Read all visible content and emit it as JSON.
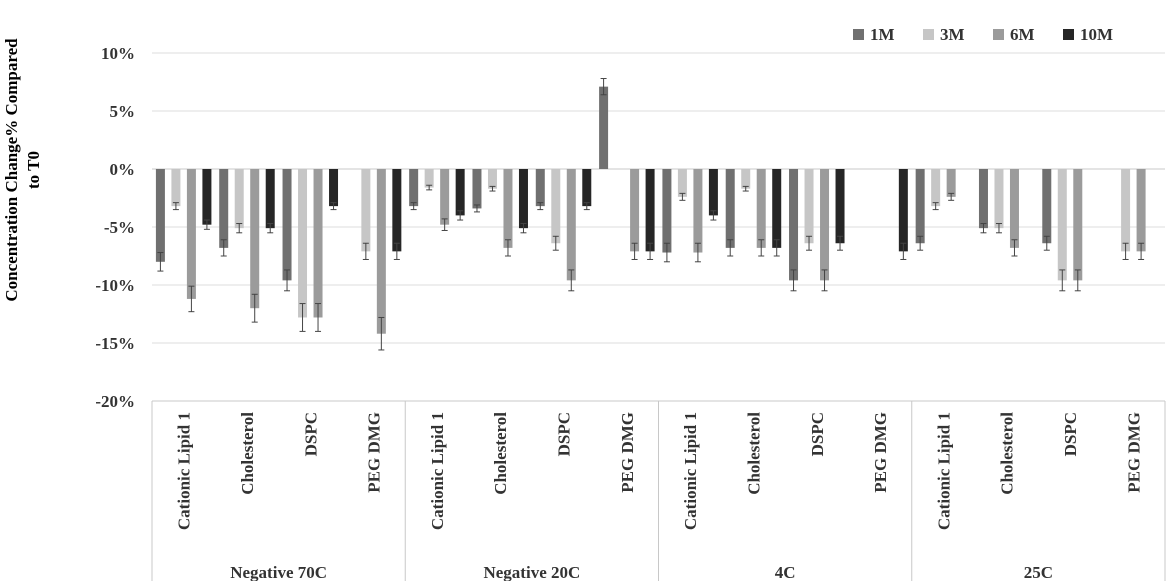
{
  "chart_data": {
    "type": "bar",
    "ylabel": "Concentration Change% Compared to T0",
    "ylabel_lines": [
      "Concentration Change% Compared",
      "to T0"
    ],
    "ylim": [
      -20,
      10
    ],
    "yticks": [
      10,
      5,
      0,
      -5,
      -10,
      -15,
      -20
    ],
    "ytick_labels": [
      "10%",
      "5%",
      "0%",
      "-5%",
      "-10%",
      "-15%",
      "-20%"
    ],
    "grid": true,
    "legend_position": "top-right",
    "colors": {
      "1M": "#707070",
      "3M": "#c6c6c6",
      "6M": "#9b9b9b",
      "10M": "#262626"
    },
    "groups": [
      {
        "name": "Negative 70C",
        "categories": [
          "Cationic Lipid 1",
          "Cholesterol",
          "DSPC",
          "PEG DMG"
        ]
      },
      {
        "name": "Negative 20C",
        "categories": [
          "Cationic Lipid 1",
          "Cholesterol",
          "DSPC",
          "PEG DMG"
        ]
      },
      {
        "name": "4C",
        "categories": [
          "Cationic Lipid 1",
          "Cholesterol",
          "DSPC",
          "PEG DMG"
        ]
      },
      {
        "name": "25C",
        "categories": [
          "Cationic Lipid 1",
          "Cholesterol",
          "DSPC",
          "PEG DMG"
        ]
      }
    ],
    "series": [
      {
        "name": "1M",
        "values": [
          -8.0,
          -6.8,
          -9.6,
          null,
          -3.2,
          -3.4,
          -3.2,
          7.1,
          -7.2,
          -6.8,
          -9.6,
          null,
          -6.4,
          -5.1,
          -6.4,
          null
        ],
        "errors": [
          0.8,
          0.7,
          0.9,
          0,
          0.3,
          0.3,
          0.3,
          0.7,
          0.8,
          0.7,
          0.9,
          0,
          0.6,
          0.4,
          0.6,
          0
        ]
      },
      {
        "name": "3M",
        "values": [
          -3.2,
          -5.1,
          -12.8,
          -7.1,
          -1.6,
          -1.7,
          -6.4,
          null,
          -2.4,
          -1.7,
          -6.4,
          null,
          -3.2,
          -5.1,
          -9.6,
          -7.1
        ],
        "errors": [
          0.3,
          0.4,
          1.2,
          0.7,
          0.2,
          0.2,
          0.6,
          0,
          0.3,
          0.2,
          0.6,
          0,
          0.3,
          0.4,
          0.9,
          0.7
        ]
      },
      {
        "name": "6M",
        "values": [
          -11.2,
          -12.0,
          -12.8,
          -14.2,
          -4.8,
          -6.8,
          -9.6,
          -7.1,
          -7.2,
          -6.8,
          -9.6,
          null,
          -2.4,
          -6.8,
          -9.6,
          -7.1
        ],
        "errors": [
          1.1,
          1.2,
          1.2,
          1.4,
          0.5,
          0.7,
          0.9,
          0.7,
          0.8,
          0.7,
          0.9,
          0,
          0.3,
          0.7,
          0.9,
          0.7
        ]
      },
      {
        "name": "10M",
        "values": [
          -4.8,
          -5.1,
          -3.2,
          -7.1,
          -4.0,
          -5.1,
          -3.2,
          -7.1,
          -4.0,
          -6.8,
          -6.4,
          -7.1,
          null,
          null,
          null,
          null
        ],
        "errors": [
          0.4,
          0.4,
          0.3,
          0.7,
          0.4,
          0.4,
          0.3,
          0.7,
          0.4,
          0.7,
          0.6,
          0.7,
          0,
          0,
          0,
          0
        ]
      }
    ]
  }
}
